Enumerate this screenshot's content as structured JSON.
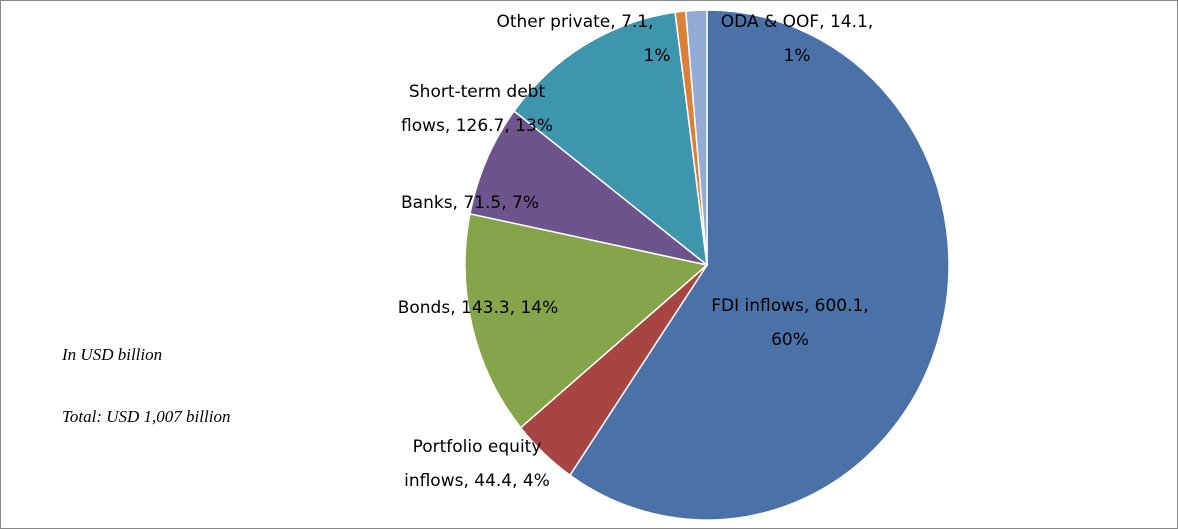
{
  "chart_data": {
    "type": "pie",
    "values": [
      600.1,
      44.4,
      143.3,
      71.5,
      126.7,
      7.1,
      14.1
    ],
    "value_labels": [
      [
        "FDI inflows, 600.1,",
        "60%"
      ],
      [
        "Portfolio equity",
        "inflows, 44.4, 4%"
      ],
      [
        "Bonds, 143.3, 14%"
      ],
      [
        "Banks, 71.5, 7%"
      ],
      [
        "Short-term debt",
        "flows, 126.7, 13%"
      ],
      [
        "Other private, 7.1,",
        "1%"
      ],
      [
        "ODA & OOF, 14.1,",
        "1%"
      ]
    ],
    "colors": [
      "#4a72a8",
      "#a84542",
      "#86a44a",
      "#6e548d",
      "#3d96ae",
      "#da8137",
      "#94abd6"
    ],
    "annotations": [
      "In USD billion",
      "Total: USD 1,007 billion"
    ]
  }
}
